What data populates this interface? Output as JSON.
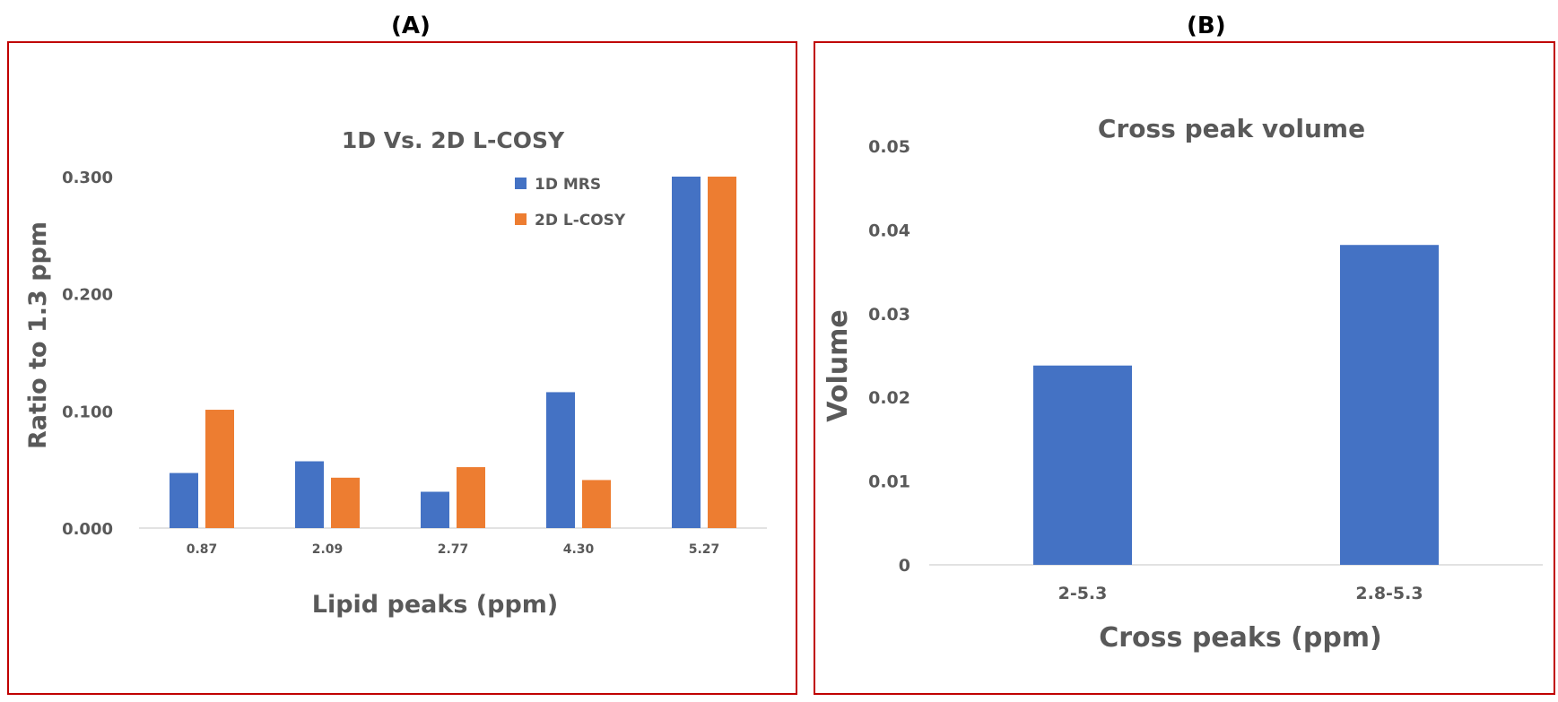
{
  "panels": {
    "a_label": "(A)",
    "b_label": "(B)"
  },
  "colors": {
    "border": "#c00000",
    "series1": "#4472c4",
    "series2": "#ed7d31",
    "text": "#595959",
    "axis": "#d9d9d9"
  },
  "chart_data": [
    {
      "type": "bar",
      "title": "1D Vs. 2D L-COSY",
      "xlabel": "Lipid peaks (ppm)",
      "ylabel": "Ratio to 1.3 ppm",
      "categories": [
        "0.87",
        "2.09",
        "2.77",
        "4.30",
        "5.27"
      ],
      "series": [
        {
          "name": "1D MRS",
          "values": [
            0.047,
            0.057,
            0.031,
            0.116,
            0.3
          ]
        },
        {
          "name": "2D L-COSY",
          "values": [
            0.101,
            0.043,
            0.052,
            0.041,
            0.3
          ]
        }
      ],
      "ylim": [
        0,
        0.3
      ],
      "yticks": [
        "0.000",
        "0.100",
        "0.200",
        "0.300"
      ],
      "legend": "top-right",
      "grid": false
    },
    {
      "type": "bar",
      "title": "Cross peak volume",
      "xlabel": "Cross peaks (ppm)",
      "ylabel": "Volume",
      "categories": [
        "2-5.3",
        "2.8-5.3"
      ],
      "series": [
        {
          "name": "Volume",
          "values": [
            0.0238,
            0.0382
          ]
        }
      ],
      "ylim": [
        0,
        0.05
      ],
      "yticks": [
        "0",
        "0.01",
        "0.02",
        "0.03",
        "0.04",
        "0.05"
      ],
      "legend": "none",
      "grid": false
    }
  ]
}
